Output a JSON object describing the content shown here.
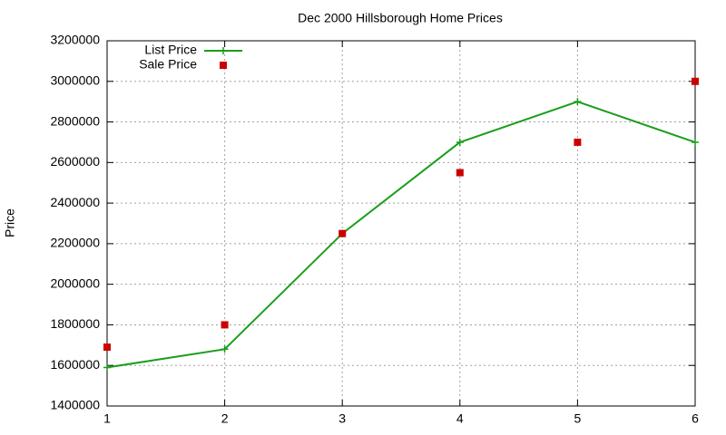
{
  "chart_data": {
    "type": "line",
    "title": "Dec 2000 Hillsborough Home Prices",
    "y_label": "Price",
    "x": [
      1,
      2,
      3,
      4,
      5,
      6
    ],
    "xlim": [
      1,
      6
    ],
    "xticks": [
      1,
      2,
      3,
      4,
      5,
      6
    ],
    "ylim": [
      1400000,
      3200000
    ],
    "yticks": [
      1400000,
      1600000,
      1800000,
      2000000,
      2200000,
      2400000,
      2600000,
      2800000,
      3000000,
      3200000
    ],
    "grid": true,
    "legend": "top-left",
    "series": [
      {
        "name": "List Price",
        "color": "#1a9e1a",
        "style": "linespoints",
        "values": [
          1590000,
          1680000,
          2250000,
          2700000,
          2900000,
          2700000
        ]
      },
      {
        "name": "Sale Price",
        "color": "#cc0000",
        "style": "points",
        "values": [
          1690000,
          1800000,
          2250000,
          2550000,
          2700000,
          3000000
        ]
      }
    ]
  }
}
